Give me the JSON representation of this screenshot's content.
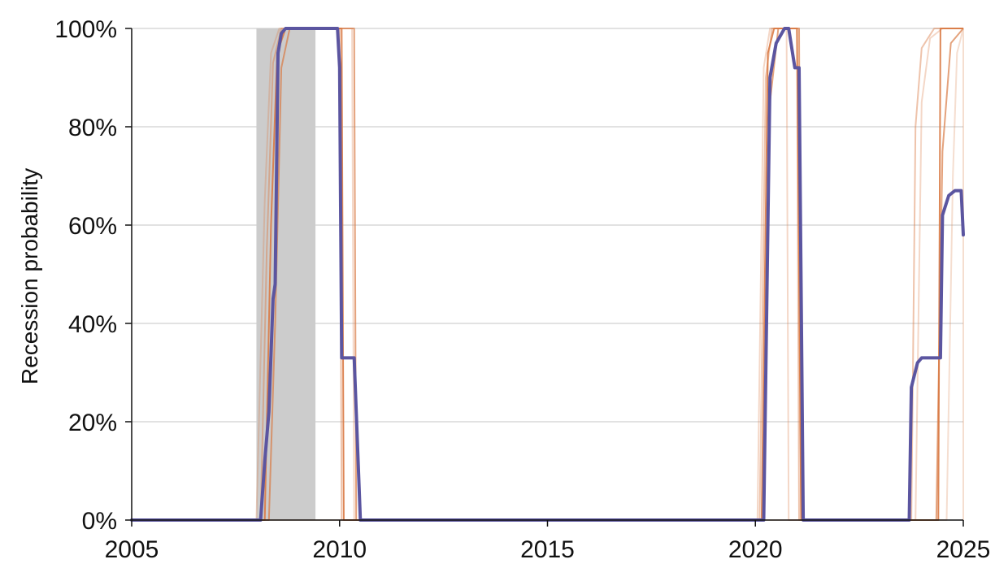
{
  "chart_data": {
    "type": "line",
    "title": "",
    "xlabel": "",
    "ylabel": "Recession probability",
    "xlim": [
      2005,
      2025
    ],
    "ylim": [
      0,
      100
    ],
    "x_ticks": [
      2005,
      2010,
      2015,
      2020,
      2025
    ],
    "x_tick_labels": [
      "2005",
      "2010",
      "2015",
      "2020",
      "2025"
    ],
    "y_ticks": [
      0,
      20,
      40,
      60,
      80,
      100
    ],
    "y_tick_labels": [
      "0%",
      "20%",
      "40%",
      "60%",
      "80%",
      "100%"
    ],
    "grid": "horizontal",
    "legend": "none",
    "shaded_periods": [
      {
        "start": 2008.0,
        "end": 2009.42,
        "color": "#cccccc"
      }
    ],
    "colors": {
      "main": "#5b55a0",
      "vintage": "#d97a45",
      "shade": "#cccccc",
      "grid": "#d9d9d9"
    },
    "series": [
      {
        "role": "main",
        "x": [
          2005,
          2008.1,
          2008.2,
          2008.3,
          2008.4,
          2008.45,
          2008.52,
          2008.6,
          2008.7,
          2008.8,
          2009.0,
          2009.5,
          2009.95,
          2010.0,
          2010.05,
          2010.1,
          2010.35,
          2010.5,
          2020.1,
          2020.2,
          2020.35,
          2020.5,
          2020.7,
          2020.8,
          2020.95,
          2021.05,
          2021.15,
          2023.7,
          2023.75,
          2023.9,
          2024.0,
          2024.4,
          2024.45,
          2024.5,
          2024.65,
          2024.8,
          2024.95,
          2025.0
        ],
        "y": [
          0,
          0,
          12,
          22,
          45,
          48,
          95,
          99,
          100,
          100,
          100,
          100,
          100,
          92,
          33,
          33,
          33,
          0,
          0,
          0,
          90,
          97,
          100,
          100,
          92,
          92,
          0,
          0,
          27,
          32,
          33,
          33,
          33,
          62,
          66,
          67,
          67,
          58
        ]
      },
      {
        "role": "vintage",
        "opacity": 0.9,
        "x": [
          2005,
          2008.2,
          2008.35,
          2008.5,
          2008.7,
          2010.05,
          2010.1,
          2020.15,
          2020.3,
          2020.45,
          2021.0,
          2021.1,
          2024.4,
          2024.45,
          2025.0
        ],
        "y": [
          0,
          0,
          60,
          95,
          100,
          100,
          0,
          0,
          95,
          100,
          100,
          0,
          0,
          100,
          100
        ]
      },
      {
        "role": "vintage",
        "opacity": 0.7,
        "x": [
          2005,
          2008.3,
          2008.45,
          2008.6,
          2008.8,
          2010.35,
          2010.4,
          2020.2,
          2020.35,
          2020.55,
          2021.05,
          2021.1,
          2024.35,
          2024.5,
          2024.7,
          2025.0
        ],
        "y": [
          0,
          0,
          40,
          92,
          100,
          100,
          0,
          0,
          85,
          100,
          100,
          0,
          0,
          75,
          97,
          100
        ]
      },
      {
        "role": "vintage",
        "opacity": 0.45,
        "x": [
          2005,
          2008.1,
          2008.25,
          2008.4,
          2008.6,
          2010.0,
          2010.05,
          2020.1,
          2020.25,
          2020.4,
          2021.0,
          2021.05,
          2023.75,
          2023.85,
          2024.0,
          2024.3,
          2025.0
        ],
        "y": [
          0,
          0,
          55,
          93,
          100,
          100,
          0,
          0,
          90,
          100,
          100,
          0,
          0,
          80,
          96,
          100,
          100
        ]
      },
      {
        "role": "vintage",
        "opacity": 0.3,
        "x": [
          2005,
          2008.0,
          2008.2,
          2008.35,
          2008.55,
          2010.3,
          2010.35,
          2020.05,
          2020.2,
          2020.35,
          2020.75,
          2020.8,
          2023.85,
          2024.0,
          2024.2,
          2024.5,
          2025.0
        ],
        "y": [
          0,
          0,
          65,
          95,
          100,
          100,
          0,
          0,
          92,
          100,
          100,
          0,
          0,
          85,
          98,
          100,
          100
        ]
      },
      {
        "role": "vintage",
        "opacity": 0.25,
        "x": [
          2005,
          2024.6,
          2024.75,
          2024.85,
          2025.0,
          2025.0
        ],
        "y": [
          0,
          0,
          70,
          95,
          100,
          0
        ]
      }
    ]
  }
}
